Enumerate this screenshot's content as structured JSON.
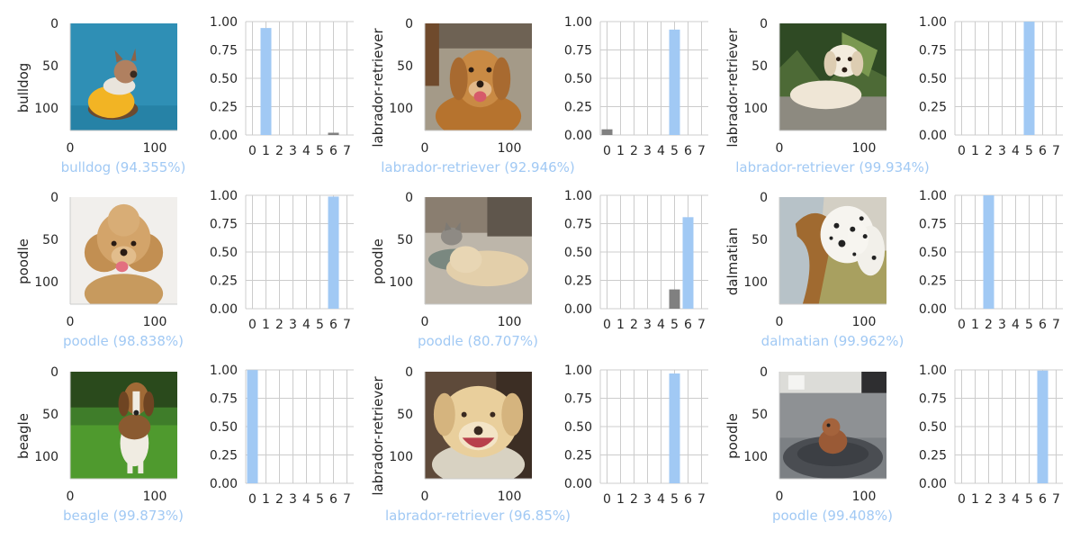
{
  "colors": {
    "predicted_bar": "#a1c9f4",
    "other_bar": "#808080",
    "caption_text": "#a1c9f4",
    "grid": "#cccccc",
    "spine": "#cccccc",
    "tick_text": "#262626"
  },
  "image_axes": {
    "ticks": [
      "0",
      "50",
      "100"
    ],
    "xticks": [
      "0",
      "100"
    ],
    "range": [
      0,
      128
    ]
  },
  "bar_axes": {
    "ylim": [
      0,
      1
    ],
    "yticks": [
      "0.00",
      "0.25",
      "0.50",
      "0.75",
      "1.00"
    ],
    "xticks": [
      "0",
      "1",
      "2",
      "3",
      "4",
      "5",
      "6",
      "7"
    ]
  },
  "chart_data": [
    {
      "type": "bar",
      "image_subject": "french-bulldog-in-yellow-hoodie",
      "ylabel": "bulldog",
      "caption": "bulldog (94.355%)",
      "categories": [
        0,
        1,
        2,
        3,
        4,
        5,
        6,
        7
      ],
      "predicted": 1,
      "values": [
        0,
        0.94355,
        0,
        0,
        0,
        0,
        0.02,
        0
      ]
    },
    {
      "type": "bar",
      "image_subject": "golden-retriever-on-gravel",
      "ylabel": "labrador-retriever",
      "caption": "labrador-retriever (92.946%)",
      "categories": [
        0,
        1,
        2,
        3,
        4,
        5,
        6,
        7
      ],
      "predicted": 5,
      "values": [
        0.05,
        0,
        0,
        0,
        0,
        0.92946,
        0,
        0
      ]
    },
    {
      "type": "bar",
      "image_subject": "labrador-puppy-lying-by-plants",
      "ylabel": "labrador-retriever",
      "caption": "labrador-retriever (99.934%)",
      "categories": [
        0,
        1,
        2,
        3,
        4,
        5,
        6,
        7
      ],
      "predicted": 5,
      "values": [
        0,
        0,
        0,
        0,
        0,
        0.99934,
        0,
        0
      ]
    },
    {
      "type": "bar",
      "image_subject": "fluffy-poodle-white-background",
      "ylabel": "poodle",
      "caption": "poodle (98.838%)",
      "categories": [
        0,
        1,
        2,
        3,
        4,
        5,
        6,
        7
      ],
      "predicted": 6,
      "values": [
        0,
        0,
        0,
        0,
        0,
        0,
        0.98838,
        0
      ]
    },
    {
      "type": "bar",
      "image_subject": "dog-and-cat-lying-on-floor",
      "ylabel": "poodle",
      "caption": "poodle (80.707%)",
      "categories": [
        0,
        1,
        2,
        3,
        4,
        5,
        6,
        7
      ],
      "predicted": 6,
      "values": [
        0,
        0,
        0,
        0,
        0,
        0.17,
        0.80707,
        0
      ]
    },
    {
      "type": "bar",
      "image_subject": "dalmatian-by-wicker-chair",
      "ylabel": "dalmatian",
      "caption": "dalmatian (99.962%)",
      "categories": [
        0,
        1,
        2,
        3,
        4,
        5,
        6,
        7
      ],
      "predicted": 2,
      "values": [
        0,
        0,
        0.99962,
        0,
        0,
        0,
        0,
        0
      ]
    },
    {
      "type": "bar",
      "image_subject": "beagle-standing-on-grass",
      "ylabel": "beagle",
      "caption": "beagle (99.873%)",
      "categories": [
        0,
        1,
        2,
        3,
        4,
        5,
        6,
        7
      ],
      "predicted": 0,
      "values": [
        0.99873,
        0,
        0,
        0,
        0,
        0,
        0,
        0
      ]
    },
    {
      "type": "bar",
      "image_subject": "smiling-labrador-closeup",
      "ylabel": "labrador-retriever",
      "caption": "labrador-retriever (96.85%)",
      "categories": [
        0,
        1,
        2,
        3,
        4,
        5,
        6,
        7
      ],
      "predicted": 5,
      "values": [
        0,
        0,
        0,
        0,
        0,
        0.9685,
        0,
        0
      ]
    },
    {
      "type": "bar",
      "image_subject": "toy-poodle-in-grey-dog-bed",
      "ylabel": "poodle",
      "caption": "poodle (99.408%)",
      "categories": [
        0,
        1,
        2,
        3,
        4,
        5,
        6,
        7
      ],
      "predicted": 6,
      "values": [
        0,
        0,
        0,
        0,
        0,
        0,
        0.99408,
        0
      ]
    }
  ]
}
